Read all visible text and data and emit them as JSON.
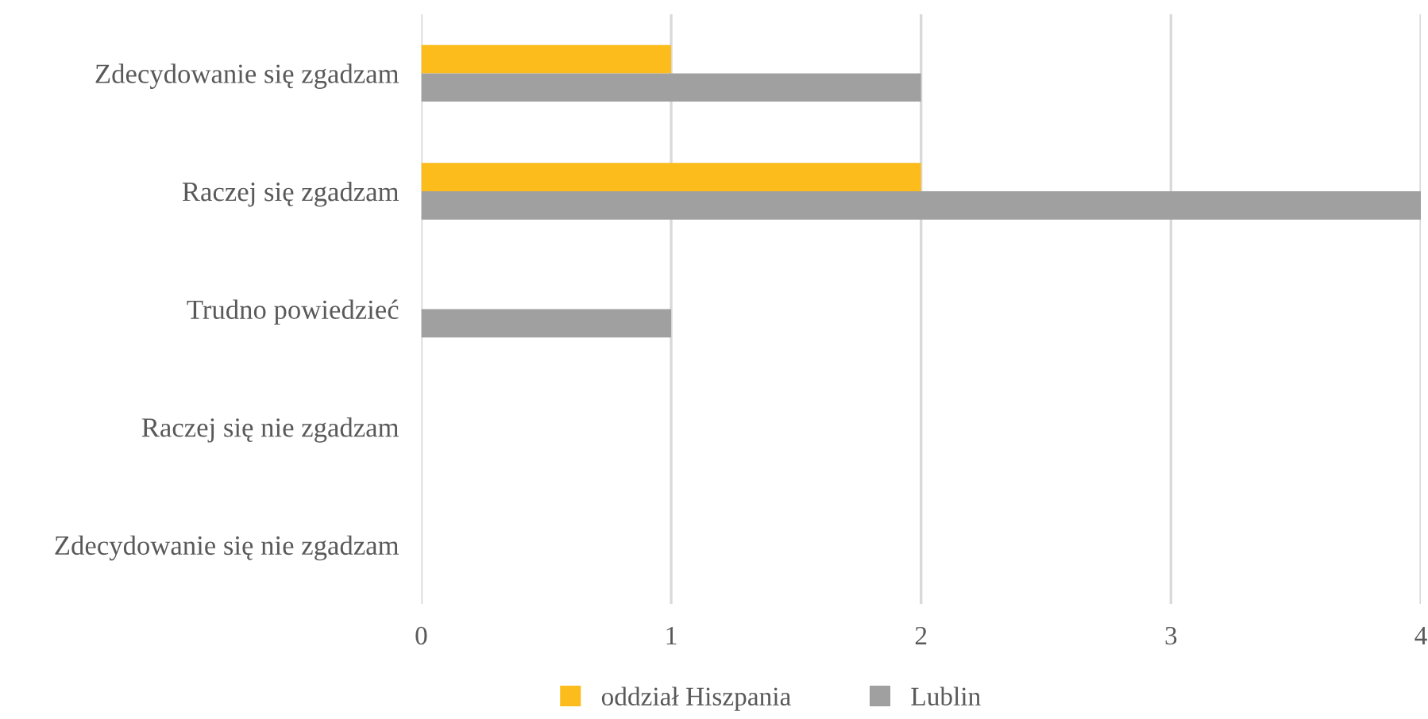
{
  "chart_data": {
    "type": "bar",
    "orientation": "horizontal",
    "categories": [
      "Zdecydowanie się zgadzam",
      "Raczej się zgadzam",
      "Trudno powiedzieć",
      "Raczej się nie zgadzam",
      "Zdecydowanie się nie zgadzam"
    ],
    "series": [
      {
        "name": "oddział Hiszpania",
        "color": "#fbbc1c",
        "values": [
          1,
          2,
          0,
          0,
          0
        ]
      },
      {
        "name": "Lublin",
        "color": "#a0a0a0",
        "values": [
          2,
          4,
          1,
          0,
          0
        ]
      }
    ],
    "xlim": [
      0,
      4
    ],
    "xticks": [
      0,
      1,
      2,
      3,
      4
    ],
    "grid": "x",
    "legend": "bottom"
  }
}
